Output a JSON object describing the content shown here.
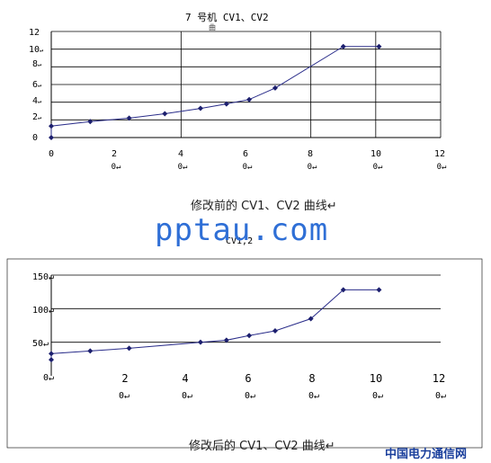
{
  "charts": [
    {
      "title": "7 号机 CV1、CV2",
      "title_fragment": "曲",
      "caption": "修改前的 CV1、CV2 曲线↵",
      "y_tick_labels": [
        "0",
        "2",
        "4",
        "6",
        "8",
        "10",
        "12"
      ],
      "y_tick_suffixes": [
        "",
        "↵",
        "↵",
        "↵",
        "↵",
        "↵",
        ""
      ],
      "x_tick_labels": [
        "0",
        "2",
        "4",
        "6",
        "8",
        "10",
        "12"
      ],
      "x_tick_sublabels": [
        "",
        "0↵",
        "0↵",
        "0↵",
        "0↵",
        "0↵",
        "0↵"
      ]
    },
    {
      "title": "CV1,2",
      "caption": "修改后的 CV1、CV2 曲线↵",
      "y_tick_labels": [
        "50↵",
        "100↵",
        "150↵"
      ],
      "y_origin_label": "0↵",
      "x_tick_labels": [
        "2",
        "4",
        "6",
        "8",
        "10",
        "12"
      ],
      "x_tick_sublabels": [
        "0↵",
        "0↵",
        "0↵",
        "0↵",
        "0↵",
        "0↵"
      ]
    }
  ],
  "watermark": "pptau.com",
  "brand": "中国电力通信网",
  "colors": {
    "line": "#2a2d8a",
    "marker": "#1c1f6e",
    "grid": "#000000"
  },
  "chart_data": [
    {
      "type": "line",
      "title": "7 号机 CV1、CV2",
      "xlabel": "",
      "ylabel": "",
      "xlim": [
        0,
        12
      ],
      "ylim": [
        0,
        12
      ],
      "grid": true,
      "x": [
        0,
        0,
        1.2,
        2.4,
        3.5,
        4.6,
        5.4,
        6.1,
        6.9,
        9.0,
        10.1
      ],
      "y": [
        0,
        1.3,
        1.8,
        2.2,
        2.7,
        3.3,
        3.8,
        4.3,
        5.6,
        10.3,
        10.3
      ]
    },
    {
      "type": "line",
      "title": "CV1,2",
      "xlabel": "",
      "ylabel": "",
      "xlim": [
        0,
        12
      ],
      "ylim": [
        0,
        150
      ],
      "grid": true,
      "x": [
        0,
        0,
        1.2,
        2.4,
        4.6,
        5.4,
        6.1,
        6.9,
        8.0,
        9.0,
        10.1
      ],
      "y": [
        24,
        33,
        37,
        41,
        50,
        53,
        60,
        67,
        85,
        128,
        128
      ]
    }
  ]
}
